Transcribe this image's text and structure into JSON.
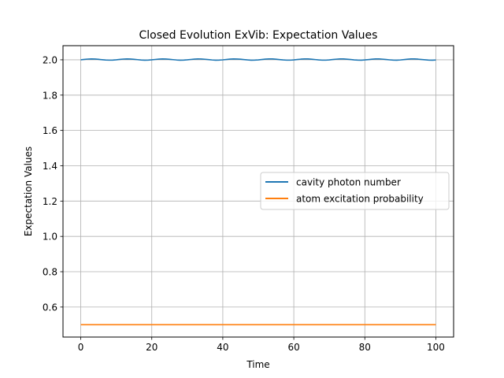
{
  "chart_data": {
    "type": "line",
    "title": "Closed Evolution ExVib: Expectation Values",
    "xlabel": "Time",
    "ylabel": "Expectation Values",
    "xlim": [
      -5,
      105
    ],
    "ylim": [
      0.43,
      2.08
    ],
    "xticks": [
      0,
      20,
      40,
      60,
      80,
      100
    ],
    "yticks": [
      0.6,
      0.8,
      1.0,
      1.2,
      1.4,
      1.6,
      1.8,
      2.0
    ],
    "grid": true,
    "legend_position": "center-right",
    "series": [
      {
        "name": "cavity photon number",
        "color": "#1f77b4",
        "x": [
          0,
          1,
          2,
          3,
          4,
          5,
          6,
          7,
          8,
          9,
          10,
          11,
          12,
          13,
          14,
          15,
          16,
          17,
          18,
          19,
          20,
          21,
          22,
          23,
          24,
          25,
          26,
          27,
          28,
          29,
          30,
          31,
          32,
          33,
          34,
          35,
          36,
          37,
          38,
          39,
          40,
          41,
          42,
          43,
          44,
          45,
          46,
          47,
          48,
          49,
          50,
          51,
          52,
          53,
          54,
          55,
          56,
          57,
          58,
          59,
          60,
          61,
          62,
          63,
          64,
          65,
          66,
          67,
          68,
          69,
          70,
          71,
          72,
          73,
          74,
          75,
          76,
          77,
          78,
          79,
          80,
          81,
          82,
          83,
          84,
          85,
          86,
          87,
          88,
          89,
          90,
          91,
          92,
          93,
          94,
          95,
          96,
          97,
          98,
          99,
          100
        ],
        "y": [
          2.0,
          2.0024,
          2.0042,
          2.005,
          2.0044,
          2.0027,
          2.0006,
          1.9989,
          1.9981,
          1.9985,
          2.0,
          2.0022,
          2.0042,
          2.005,
          2.0045,
          2.0029,
          2.0008,
          1.999,
          1.998,
          1.9984,
          1.9999,
          2.002,
          2.0041,
          2.005,
          2.0046,
          2.003,
          2.0009,
          1.9991,
          1.998,
          1.9983,
          1.9998,
          2.0019,
          2.004,
          2.005,
          2.0047,
          2.0031,
          2.001,
          1.9992,
          1.998,
          1.9982,
          1.9997,
          2.0018,
          2.0039,
          2.005,
          2.0047,
          2.0032,
          2.0011,
          1.9993,
          1.998,
          1.9982,
          1.9996,
          2.0017,
          2.0038,
          2.0049,
          2.0048,
          2.0033,
          2.0013,
          1.9994,
          1.9981,
          1.9981,
          1.9995,
          2.0016,
          2.0037,
          2.0049,
          2.0048,
          2.0034,
          2.0014,
          1.9995,
          1.9981,
          1.9981,
          1.9994,
          2.0015,
          2.0036,
          2.0049,
          2.0048,
          2.0035,
          2.0015,
          1.9996,
          1.9982,
          1.998,
          1.9993,
          2.0013,
          2.0035,
          2.0048,
          2.0049,
          2.0036,
          2.0016,
          1.9997,
          1.9982,
          1.998,
          1.9992,
          2.0012,
          2.0034,
          2.0048,
          2.0049,
          2.0037,
          2.0017,
          1.9998,
          1.9983,
          1.998,
          1.9991
        ]
      },
      {
        "name": "atom excitation probability",
        "color": "#ff7f0e",
        "x": [
          0,
          100
        ],
        "y": [
          0.5,
          0.5
        ]
      }
    ]
  }
}
